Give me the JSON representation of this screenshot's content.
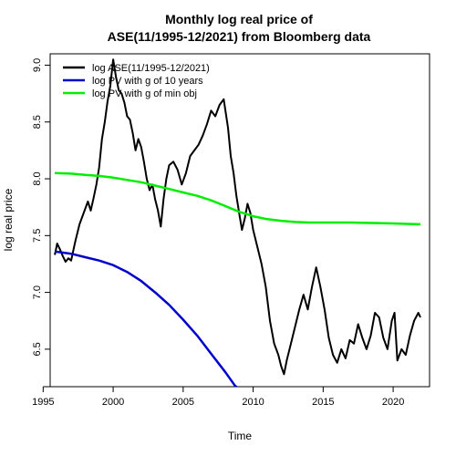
{
  "chart_data": {
    "type": "line",
    "title_lines": [
      "Monthly log real price of",
      "ASE(11/1995-12/2021) from Bloomberg data"
    ],
    "xlabel": "Time",
    "ylabel": "log real price",
    "xlim": [
      1995.5,
      2022.6
    ],
    "ylim": [
      6.17,
      9.1
    ],
    "x_ticks": [
      1995,
      2000,
      2005,
      2010,
      2015,
      2020
    ],
    "y_ticks": [
      6.5,
      7.0,
      7.5,
      8.0,
      8.5,
      9.0
    ],
    "y_tick_labels": [
      "6.5",
      "7.0",
      "7.5",
      "8.0",
      "8.5",
      "9.0"
    ],
    "grid": false,
    "legend_position": "top-left",
    "series": [
      {
        "name": "log ASE(11/1995-12/2021)",
        "color": "#000000",
        "x": [
          1995.83,
          1996.0,
          1996.2,
          1996.4,
          1996.6,
          1996.8,
          1997.0,
          1997.3,
          1997.6,
          1997.9,
          1998.2,
          1998.4,
          1998.6,
          1998.8,
          1999.0,
          1999.2,
          1999.4,
          1999.6,
          1999.8,
          2000.0,
          2000.2,
          2000.4,
          2000.6,
          2000.8,
          2001.0,
          2001.2,
          2001.4,
          2001.6,
          2001.8,
          2002.0,
          2002.2,
          2002.4,
          2002.6,
          2002.8,
          2003.0,
          2003.2,
          2003.4,
          2003.6,
          2003.8,
          2004.0,
          2004.3,
          2004.6,
          2004.9,
          2005.2,
          2005.5,
          2005.8,
          2006.1,
          2006.4,
          2006.7,
          2007.0,
          2007.3,
          2007.6,
          2007.9,
          2008.2,
          2008.4,
          2008.6,
          2008.8,
          2009.0,
          2009.2,
          2009.4,
          2009.6,
          2009.8,
          2010.0,
          2010.3,
          2010.6,
          2010.9,
          2011.2,
          2011.5,
          2011.8,
          2012.0,
          2012.2,
          2012.4,
          2012.7,
          2013.0,
          2013.3,
          2013.6,
          2013.9,
          2014.2,
          2014.5,
          2014.8,
          2015.1,
          2015.4,
          2015.7,
          2016.0,
          2016.3,
          2016.6,
          2016.9,
          2017.2,
          2017.5,
          2017.8,
          2018.1,
          2018.4,
          2018.7,
          2019.0,
          2019.3,
          2019.6,
          2019.9,
          2020.1,
          2020.3,
          2020.6,
          2020.9,
          2021.2,
          2021.5,
          2021.8,
          2021.95
        ],
        "y": [
          7.33,
          7.43,
          7.38,
          7.32,
          7.27,
          7.3,
          7.28,
          7.45,
          7.6,
          7.7,
          7.8,
          7.72,
          7.83,
          7.95,
          8.1,
          8.35,
          8.5,
          8.68,
          8.82,
          9.05,
          8.9,
          8.78,
          8.75,
          8.67,
          8.55,
          8.52,
          8.4,
          8.25,
          8.35,
          8.28,
          8.15,
          8.0,
          7.9,
          7.95,
          7.82,
          7.72,
          7.58,
          7.82,
          8.0,
          8.12,
          8.15,
          8.08,
          7.95,
          8.05,
          8.2,
          8.25,
          8.3,
          8.38,
          8.48,
          8.6,
          8.55,
          8.65,
          8.7,
          8.45,
          8.2,
          8.05,
          7.85,
          7.7,
          7.55,
          7.65,
          7.78,
          7.7,
          7.55,
          7.4,
          7.25,
          7.05,
          6.75,
          6.55,
          6.45,
          6.35,
          6.28,
          6.4,
          6.55,
          6.7,
          6.85,
          6.98,
          6.85,
          7.05,
          7.22,
          7.05,
          6.85,
          6.6,
          6.45,
          6.38,
          6.5,
          6.42,
          6.58,
          6.55,
          6.72,
          6.6,
          6.5,
          6.62,
          6.82,
          6.78,
          6.6,
          6.5,
          6.75,
          6.82,
          6.4,
          6.5,
          6.45,
          6.62,
          6.75,
          6.82,
          6.78
        ]
      },
      {
        "name": "log PV with g of 10 years",
        "color": "#0000cc",
        "x": [
          1995.83,
          1997.0,
          1998.0,
          1999.0,
          2000.0,
          2001.0,
          2002.0,
          2003.0,
          2004.0,
          2005.0,
          2006.0,
          2007.0,
          2008.0,
          2008.7,
          2009.3
        ],
        "y": [
          7.36,
          7.34,
          7.31,
          7.28,
          7.24,
          7.18,
          7.1,
          7.0,
          6.89,
          6.76,
          6.62,
          6.46,
          6.3,
          6.18,
          6.12
        ]
      },
      {
        "name": "log PV with g of min obj",
        "color": "#00ee00",
        "x": [
          1995.83,
          1997.0,
          1998.0,
          1999.0,
          2000.0,
          2001.0,
          2002.0,
          2003.0,
          2004.0,
          2005.0,
          2006.0,
          2007.0,
          2008.0,
          2009.0,
          2010.0,
          2011.0,
          2012.0,
          2013.0,
          2014.0,
          2015.0,
          2016.0,
          2017.0,
          2018.0,
          2019.0,
          2020.0,
          2021.0,
          2021.95
        ],
        "y": [
          8.05,
          8.045,
          8.035,
          8.025,
          8.01,
          7.99,
          7.97,
          7.94,
          7.91,
          7.88,
          7.85,
          7.81,
          7.76,
          7.71,
          7.67,
          7.645,
          7.63,
          7.62,
          7.615,
          7.615,
          7.615,
          7.615,
          7.612,
          7.61,
          7.607,
          7.603,
          7.6
        ]
      }
    ]
  }
}
